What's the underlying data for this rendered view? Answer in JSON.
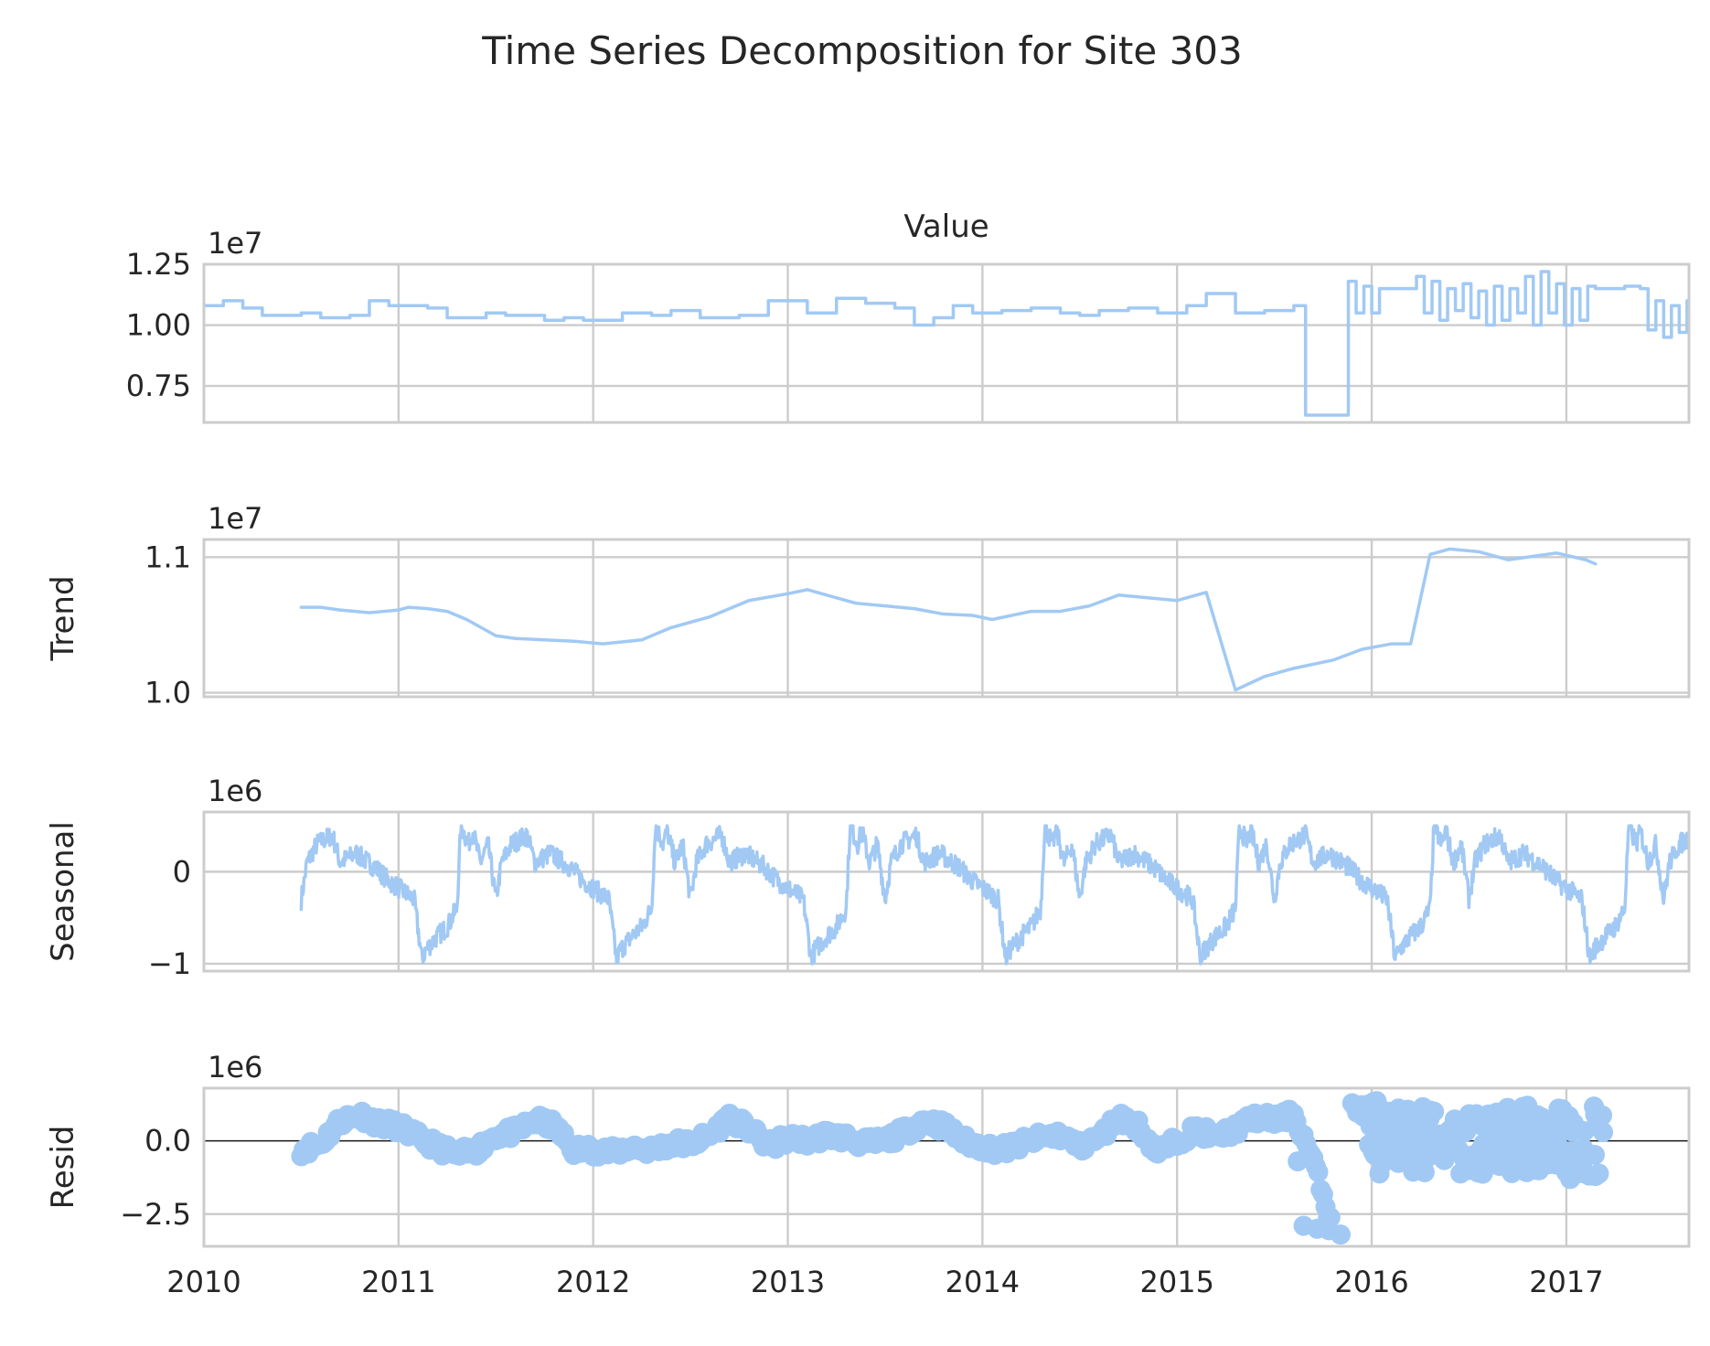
{
  "title": "Time Series Decomposition for Site 303",
  "colors": {
    "series": "#a1c9f4",
    "grid": "#cccccc",
    "text": "#262626",
    "zero_line": "#000000"
  },
  "chart_data": [
    {
      "type": "line",
      "panel": "observed",
      "title": "Value",
      "ylabel": "",
      "offset_label": "1e7",
      "scale": 10000000,
      "xlim": [
        2010.0,
        2017.63
      ],
      "ylim": [
        0.6,
        1.25
      ],
      "yticks": [
        0.75,
        1.0,
        1.25
      ],
      "ytick_labels": [
        "0.75",
        "1.00",
        "1.25"
      ],
      "grid": true,
      "x": [
        2010.0,
        2010.1,
        2010.2,
        2010.3,
        2010.5,
        2010.6,
        2010.75,
        2010.85,
        2010.95,
        2011.15,
        2011.25,
        2011.45,
        2011.55,
        2011.75,
        2011.85,
        2011.95,
        2012.15,
        2012.3,
        2012.4,
        2012.55,
        2012.75,
        2012.9,
        2013.1,
        2013.25,
        2013.4,
        2013.55,
        2013.65,
        2013.75,
        2013.85,
        2013.95,
        2014.1,
        2014.25,
        2014.4,
        2014.5,
        2014.6,
        2014.75,
        2014.9,
        2015.05,
        2015.15,
        2015.3,
        2015.45,
        2015.6,
        2015.66,
        2015.85,
        2015.88,
        2015.92,
        2015.96,
        2016.0,
        2016.04,
        2016.1,
        2016.2,
        2016.23,
        2016.27,
        2016.31,
        2016.35,
        2016.39,
        2016.43,
        2016.47,
        2016.51,
        2016.55,
        2016.59,
        2016.63,
        2016.67,
        2016.71,
        2016.75,
        2016.79,
        2016.83,
        2016.87,
        2016.91,
        2016.95,
        2016.99,
        2017.03,
        2017.07,
        2017.11,
        2017.15,
        2017.3,
        2017.38,
        2017.42,
        2017.46,
        2017.5,
        2017.54,
        2017.58,
        2017.62
      ],
      "values": [
        1.08,
        1.1,
        1.07,
        1.04,
        1.05,
        1.03,
        1.04,
        1.1,
        1.08,
        1.07,
        1.03,
        1.05,
        1.04,
        1.02,
        1.03,
        1.02,
        1.05,
        1.04,
        1.06,
        1.03,
        1.04,
        1.1,
        1.05,
        1.11,
        1.09,
        1.07,
        1.0,
        1.03,
        1.08,
        1.05,
        1.06,
        1.07,
        1.05,
        1.04,
        1.06,
        1.07,
        1.05,
        1.08,
        1.13,
        1.05,
        1.06,
        1.08,
        0.63,
        0.63,
        1.18,
        1.05,
        1.16,
        1.05,
        1.15,
        1.15,
        1.15,
        1.2,
        1.05,
        1.18,
        1.02,
        1.15,
        1.06,
        1.17,
        1.03,
        1.14,
        1.0,
        1.16,
        1.02,
        1.15,
        1.05,
        1.2,
        1.0,
        1.22,
        1.05,
        1.17,
        1.0,
        1.15,
        1.02,
        1.16,
        1.15,
        1.16,
        1.15,
        0.98,
        1.1,
        0.95,
        1.08,
        0.97,
        1.1
      ]
    },
    {
      "type": "line",
      "panel": "trend",
      "title": "",
      "ylabel": "Trend",
      "offset_label": "1e7",
      "scale": 10000000,
      "xlim": [
        2010.0,
        2017.63
      ],
      "ylim": [
        0.997,
        1.113
      ],
      "yticks": [
        1.0,
        1.1
      ],
      "ytick_labels": [
        "1.0",
        "1.1"
      ],
      "grid": true,
      "x": [
        2010.5,
        2010.6,
        2010.7,
        2010.85,
        2011.0,
        2011.05,
        2011.15,
        2011.25,
        2011.35,
        2011.5,
        2011.6,
        2011.75,
        2011.9,
        2012.05,
        2012.25,
        2012.4,
        2012.6,
        2012.8,
        2013.0,
        2013.1,
        2013.2,
        2013.35,
        2013.5,
        2013.65,
        2013.8,
        2013.95,
        2014.05,
        2014.25,
        2014.4,
        2014.55,
        2014.7,
        2014.85,
        2015.0,
        2015.15,
        2015.3,
        2015.45,
        2015.6,
        2015.8,
        2015.95,
        2016.1,
        2016.2,
        2016.3,
        2016.4,
        2016.55,
        2016.7,
        2016.85,
        2016.95,
        2017.1,
        2017.15
      ],
      "values": [
        1.063,
        1.063,
        1.061,
        1.059,
        1.061,
        1.063,
        1.062,
        1.06,
        1.054,
        1.042,
        1.04,
        1.039,
        1.038,
        1.036,
        1.039,
        1.048,
        1.056,
        1.068,
        1.073,
        1.076,
        1.072,
        1.066,
        1.064,
        1.062,
        1.058,
        1.057,
        1.054,
        1.06,
        1.06,
        1.064,
        1.072,
        1.07,
        1.068,
        1.074,
        1.002,
        1.012,
        1.018,
        1.024,
        1.032,
        1.036,
        1.036,
        1.102,
        1.106,
        1.104,
        1.098,
        1.101,
        1.103,
        1.098,
        1.095
      ]
    },
    {
      "type": "line",
      "panel": "seasonal",
      "title": "",
      "ylabel": "Seasonal",
      "offset_label": "1e6",
      "scale": 1000000,
      "xlim": [
        2010.0,
        2017.63
      ],
      "ylim": [
        -1.08,
        0.65
      ],
      "yticks": [
        -1,
        0
      ],
      "ytick_labels": [
        "−1",
        "0"
      ],
      "grid": true,
      "pattern_offsets": [
        0.0,
        0.03,
        0.08,
        0.16,
        0.2,
        0.28,
        0.38,
        0.45,
        0.58,
        0.62,
        0.64,
        0.7,
        0.75,
        0.8,
        0.82,
        0.86,
        0.88,
        0.92,
        0.96,
        1.0
      ],
      "pattern_values": [
        -0.3,
        0.1,
        0.3,
        0.4,
        0.1,
        0.2,
        0.05,
        -0.1,
        -0.3,
        -0.95,
        -0.85,
        -0.7,
        -0.6,
        -0.4,
        0.5,
        0.3,
        0.45,
        0.1,
        0.3,
        -0.3
      ],
      "noise_amplitude": 0.22
    },
    {
      "type": "scatter",
      "panel": "resid",
      "title": "",
      "ylabel": "Resid",
      "offset_label": "1e6",
      "scale": 1000000,
      "xlim": [
        2010.0,
        2017.63
      ],
      "ylim": [
        -3.6,
        1.8
      ],
      "yticks": [
        -2.5,
        0.0
      ],
      "ytick_labels": [
        "−2.5",
        "0.0"
      ],
      "grid": true,
      "baseline": 0,
      "x": [
        2010.5,
        2010.6,
        2010.7,
        2010.8,
        2010.9,
        2011.0,
        2011.1,
        2011.2,
        2011.3,
        2011.4,
        2011.5,
        2011.6,
        2011.7,
        2011.8,
        2011.9,
        2012.0,
        2012.1,
        2012.2,
        2012.3,
        2012.4,
        2012.5,
        2012.6,
        2012.7,
        2012.8,
        2012.9,
        2013.0,
        2013.1,
        2013.2,
        2013.3,
        2013.4,
        2013.5,
        2013.6,
        2013.7,
        2013.8,
        2013.9,
        2014.0,
        2014.1,
        2014.2,
        2014.3,
        2014.4,
        2014.5,
        2014.6,
        2014.7,
        2014.8,
        2014.9,
        2015.0,
        2015.1,
        2015.2,
        2015.3,
        2015.4,
        2015.5,
        2015.6,
        2015.7,
        2015.8,
        2015.9,
        2016.0,
        2016.1,
        2016.2,
        2016.3,
        2016.4,
        2016.5,
        2016.6,
        2016.7,
        2016.8,
        2016.9,
        2017.0,
        2017.1
      ],
      "values": [
        -0.3,
        -0.1,
        0.7,
        0.9,
        0.6,
        0.5,
        0.1,
        -0.2,
        -0.5,
        -0.3,
        0.2,
        0.3,
        0.7,
        0.5,
        -0.3,
        -0.3,
        -0.4,
        -0.2,
        -0.3,
        -0.1,
        -0.1,
        0.2,
        0.8,
        0.4,
        -0.2,
        0.1,
        0.0,
        0.2,
        0.1,
        -0.1,
        0.0,
        0.3,
        0.7,
        0.5,
        0.0,
        -0.2,
        -0.3,
        -0.1,
        0.1,
        0.2,
        -0.2,
        0.1,
        0.8,
        0.5,
        -0.4,
        0.0,
        0.4,
        0.1,
        0.4,
        0.8,
        0.7,
        0.9,
        -0.7,
        -3.0,
        1.1,
        1.2,
        1.0,
        0.8,
        -0.6,
        0.3,
        -0.8,
        -0.5,
        0.2,
        1.0,
        0.5,
        -1.0,
        -0.2
      ],
      "extra_points": [
        {
          "x": 2015.65,
          "y": -2.9
        },
        {
          "x": 2015.72,
          "y": -3.0
        },
        {
          "x": 2015.78,
          "y": -3.05
        },
        {
          "x": 2015.84,
          "y": -3.2
        },
        {
          "x": 2015.62,
          "y": -0.7
        },
        {
          "x": 2016.28,
          "y": -0.5
        },
        {
          "x": 2016.32,
          "y": 1.0
        },
        {
          "x": 2016.8,
          "y": 1.2
        },
        {
          "x": 2016.86,
          "y": -1.0
        },
        {
          "x": 2016.96,
          "y": 1.1
        },
        {
          "x": 2017.02,
          "y": -1.3
        },
        {
          "x": 2017.08,
          "y": -1.1
        },
        {
          "x": 2017.15,
          "y": -1.2
        },
        {
          "x": 2016.6,
          "y": 0.9
        },
        {
          "x": 2016.72,
          "y": -1.1
        }
      ]
    }
  ],
  "x_axis": {
    "ticks": [
      2010,
      2011,
      2012,
      2013,
      2014,
      2015,
      2016,
      2017
    ],
    "tick_labels": [
      "2010",
      "2011",
      "2012",
      "2013",
      "2014",
      "2015",
      "2016",
      "2017"
    ]
  }
}
